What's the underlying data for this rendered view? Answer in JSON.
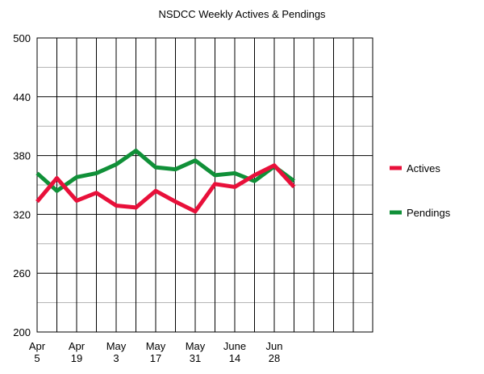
{
  "chart_data": {
    "type": "line",
    "title": "NSDCC Weekly Actives & Pendings",
    "xlabel": "",
    "ylabel": "",
    "ylim": [
      200,
      500
    ],
    "yticks": [
      200,
      260,
      320,
      380,
      440,
      500
    ],
    "grid": true,
    "legend_position": "right",
    "x_tick_labels": [
      {
        "index": 0,
        "lines": [
          "Apr",
          "5"
        ]
      },
      {
        "index": 2,
        "lines": [
          "Apr",
          "19"
        ]
      },
      {
        "index": 4,
        "lines": [
          "May",
          "3"
        ]
      },
      {
        "index": 6,
        "lines": [
          "May",
          "17"
        ]
      },
      {
        "index": 8,
        "lines": [
          "May",
          "31"
        ]
      },
      {
        "index": 10,
        "lines": [
          "June",
          "14"
        ]
      },
      {
        "index": 12,
        "lines": [
          "Jun",
          "28"
        ]
      }
    ],
    "series": [
      {
        "name": "Actives",
        "color": "#e8103a",
        "values": [
          333,
          357,
          334,
          342,
          329,
          327,
          344,
          333,
          323,
          351,
          348,
          360,
          370,
          348
        ]
      },
      {
        "name": "Pendings",
        "color": "#109038",
        "values": [
          362,
          344,
          358,
          362,
          371,
          385,
          368,
          366,
          375,
          360,
          362,
          354,
          369,
          354
        ]
      }
    ]
  }
}
